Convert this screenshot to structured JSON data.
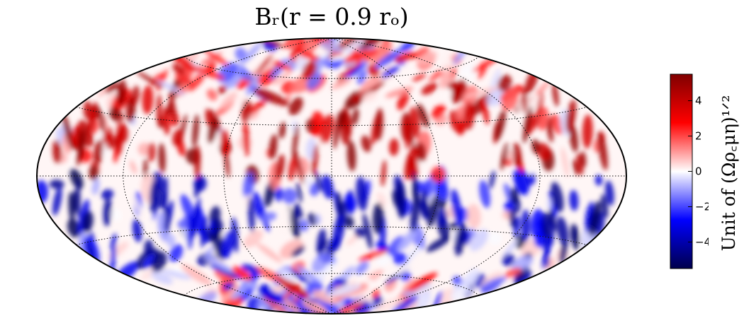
{
  "chart_data": {
    "type": "heatmap",
    "projection": "hammer-aitoff",
    "title": "B_r(r = 0.9 r_o)",
    "title_display": "Bᵣ(r = 0.9 rₒ)",
    "colorbar": {
      "label": "Unit of (Ωρcμη)^1/2",
      "label_display": "Unit of (Ωρ꜀μη)¹ᐟ²",
      "vmin": -5.5,
      "vmax": 5.5,
      "ticks": [
        4,
        2,
        0,
        -2,
        -4
      ],
      "tick_labels": [
        "4",
        "2",
        "0",
        "−2",
        "−4"
      ],
      "colormap": "seismic",
      "colors": [
        "#00004c",
        "#0000ff",
        "#ffffff",
        "#ff0000",
        "#800000"
      ]
    },
    "graticule": {
      "latitudes": [
        -60,
        -30,
        0,
        30,
        60
      ],
      "longitudes": [
        -120,
        -60,
        0,
        60,
        120
      ],
      "style": "dotted"
    },
    "field_description": "Turbulent radial magnetic field; positive (red) concentrated in the northern hemisphere near the equator, negative (blue) concentrated in the southern hemisphere near the equator, mixed at high latitudes.",
    "grid": true
  }
}
